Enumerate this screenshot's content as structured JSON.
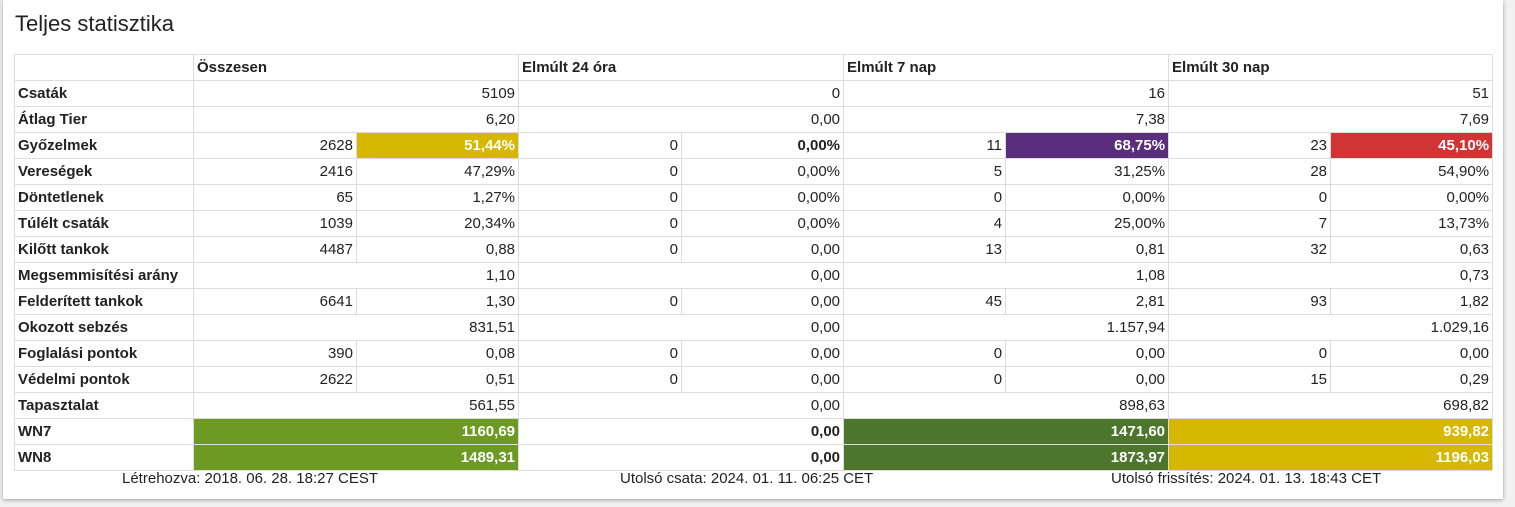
{
  "title": "Teljes statisztika",
  "headers": [
    "Összesen",
    "Elmúlt 24 óra",
    "Elmúlt 7 nap",
    "Elmúlt 30 nap"
  ],
  "rows": {
    "battles": {
      "label": "Csaták",
      "total": "5109",
      "d24": "0",
      "d7": "16",
      "d30": "51"
    },
    "avg_tier": {
      "label": "Átlag Tier",
      "total": "6,20",
      "d24": "0,00",
      "d7": "7,38",
      "d30": "7,69"
    },
    "wins": {
      "label": "Győzelmek",
      "total_n": "2628",
      "total_p": "51,44%",
      "d24_n": "0",
      "d24_p": "0,00%",
      "d7_n": "11",
      "d7_p": "68,75%",
      "d30_n": "23",
      "d30_p": "45,10%"
    },
    "losses": {
      "label": "Vereségek",
      "total_n": "2416",
      "total_p": "47,29%",
      "d24_n": "0",
      "d24_p": "0,00%",
      "d7_n": "5",
      "d7_p": "31,25%",
      "d30_n": "28",
      "d30_p": "54,90%"
    },
    "draws": {
      "label": "Döntetlenek",
      "total_n": "65",
      "total_p": "1,27%",
      "d24_n": "0",
      "d24_p": "0,00%",
      "d7_n": "0",
      "d7_p": "0,00%",
      "d30_n": "0",
      "d30_p": "0,00%"
    },
    "survived": {
      "label": "Túlélt csaták",
      "total_n": "1039",
      "total_p": "20,34%",
      "d24_n": "0",
      "d24_p": "0,00%",
      "d7_n": "4",
      "d7_p": "25,00%",
      "d30_n": "7",
      "d30_p": "13,73%"
    },
    "frags": {
      "label": "Kilőtt tankok",
      "total_n": "4487",
      "total_p": "0,88",
      "d24_n": "0",
      "d24_p": "0,00",
      "d7_n": "13",
      "d7_p": "0,81",
      "d30_n": "32",
      "d30_p": "0,63"
    },
    "kd": {
      "label": "Megsemmisítési arány",
      "total": "1,10",
      "d24": "0,00",
      "d7": "1,08",
      "d30": "0,73"
    },
    "spotted": {
      "label": "Felderített tankok",
      "total_n": "6641",
      "total_p": "1,30",
      "d24_n": "0",
      "d24_p": "0,00",
      "d7_n": "45",
      "d7_p": "2,81",
      "d30_n": "93",
      "d30_p": "1,82"
    },
    "damage": {
      "label": "Okozott sebzés",
      "total": "831,51",
      "d24": "0,00",
      "d7": "1.157,94",
      "d30": "1.029,16"
    },
    "capture": {
      "label": "Foglalási pontok",
      "total_n": "390",
      "total_p": "0,08",
      "d24_n": "0",
      "d24_p": "0,00",
      "d7_n": "0",
      "d7_p": "0,00",
      "d30_n": "0",
      "d30_p": "0,00"
    },
    "defense": {
      "label": "Védelmi pontok",
      "total_n": "2622",
      "total_p": "0,51",
      "d24_n": "0",
      "d24_p": "0,00",
      "d7_n": "0",
      "d7_p": "0,00",
      "d30_n": "15",
      "d30_p": "0,29"
    },
    "xp": {
      "label": "Tapasztalat",
      "total": "561,55",
      "d24": "0,00",
      "d7": "898,63",
      "d30": "698,82"
    },
    "wn7": {
      "label": "WN7",
      "total": "1160,69",
      "d24": "0,00",
      "d7": "1471,60",
      "d30": "939,82"
    },
    "wn8": {
      "label": "WN8",
      "total": "1489,31",
      "d24": "0,00",
      "d7": "1873,97",
      "d30": "1196,03"
    }
  },
  "colors": {
    "average_yellow": "#d6b800",
    "unicum_purple": "#5a2d7d",
    "bad_red": "#d13434",
    "good_green": "#6c9a22",
    "great_green": "#4b762b"
  },
  "footer": {
    "created": "Létrehozva: 2018. 06. 28. 18:27 CEST",
    "last_battle": "Utolsó csata: 2024. 01. 11. 06:25 CET",
    "last_update": "Utolsó frissítés: 2024. 01. 13. 18:43 CET"
  }
}
